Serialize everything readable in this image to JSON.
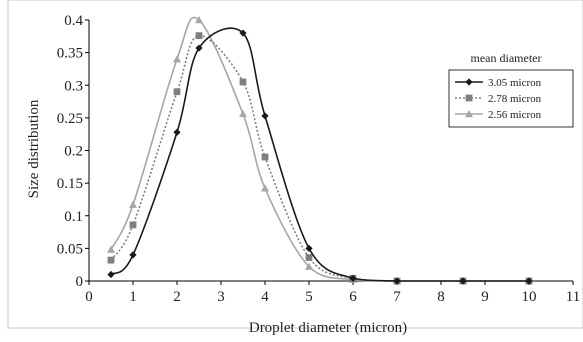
{
  "chart_data": {
    "type": "line",
    "title": "",
    "xlabel": "Droplet diameter (micron)",
    "ylabel": "Size distribution",
    "xlim": [
      0,
      11
    ],
    "ylim": [
      0,
      0.4
    ],
    "x_ticks": [
      "0",
      "1",
      "2",
      "3",
      "4",
      "5",
      "6",
      "7",
      "8",
      "9",
      "10",
      "11"
    ],
    "y_ticks": [
      "0",
      "0.05",
      "0.1",
      "0.15",
      "0.2",
      "0.25",
      "0.3",
      "0.35",
      "0.4"
    ],
    "grid": false,
    "legend": {
      "title": "mean diameter",
      "placement": "right"
    },
    "series": [
      {
        "name": "3.05 micron",
        "color": "#1a1a1a",
        "line_style": "solid",
        "marker": "diamond",
        "points": [
          [
            0.5,
            0.01
          ],
          [
            1,
            0.04
          ],
          [
            2,
            0.228
          ],
          [
            2.5,
            0.357
          ],
          [
            3.5,
            0.38
          ],
          [
            4,
            0.253
          ],
          [
            5,
            0.05
          ],
          [
            6,
            0.004
          ],
          [
            7,
            0.0
          ],
          [
            8.5,
            0.0
          ],
          [
            10,
            0.0
          ]
        ]
      },
      {
        "name": "2.78 micron",
        "color": "#7f7f7f",
        "line_style": "dotted",
        "marker": "square",
        "points": [
          [
            0.5,
            0.032
          ],
          [
            1,
            0.086
          ],
          [
            2,
            0.29
          ],
          [
            2.5,
            0.376
          ],
          [
            3.5,
            0.305
          ],
          [
            4,
            0.19
          ],
          [
            5,
            0.036
          ],
          [
            6,
            0.004
          ],
          [
            7,
            0.0
          ],
          [
            8.5,
            0.0
          ],
          [
            10,
            0.0
          ]
        ]
      },
      {
        "name": "2.56 micron",
        "color": "#a6a6a6",
        "line_style": "solid",
        "marker": "triangle",
        "points": [
          [
            0.5,
            0.048
          ],
          [
            1,
            0.117
          ],
          [
            2,
            0.34
          ],
          [
            2.5,
            0.4
          ],
          [
            3.5,
            0.256
          ],
          [
            4,
            0.142
          ],
          [
            5,
            0.022
          ],
          [
            6,
            0.002
          ],
          [
            7,
            0.0
          ],
          [
            8.5,
            0.0
          ],
          [
            10,
            0.0
          ]
        ]
      }
    ]
  }
}
